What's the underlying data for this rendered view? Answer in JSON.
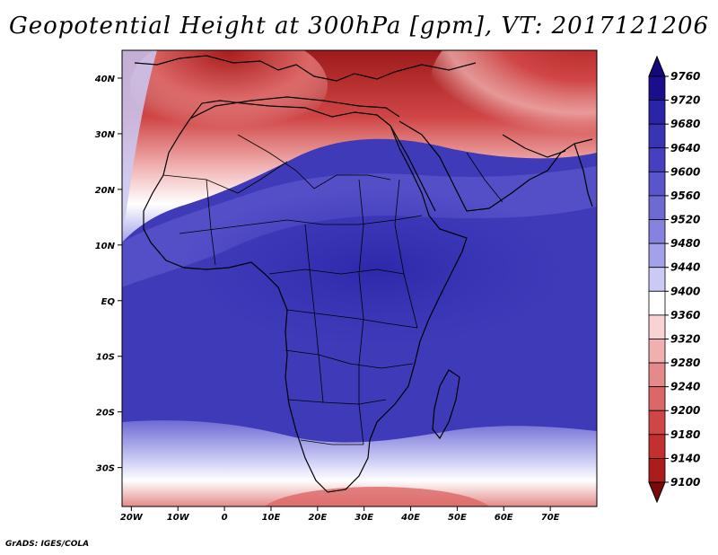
{
  "title": "Geopotential Height at 300hPa [gpm], VT: 2017121206",
  "credit": "GrADS: IGES/COLA",
  "map": {
    "variable": "Geopotential Height",
    "level": "300hPa",
    "units": "gpm",
    "valid_time": "2017121206",
    "lon_range": [
      -22,
      80
    ],
    "lat_range": [
      -37,
      45
    ],
    "x_ticks": [
      {
        "lon": -20,
        "label": "20W"
      },
      {
        "lon": -10,
        "label": "10W"
      },
      {
        "lon": 0,
        "label": "0"
      },
      {
        "lon": 10,
        "label": "10E"
      },
      {
        "lon": 20,
        "label": "20E"
      },
      {
        "lon": 30,
        "label": "30E"
      },
      {
        "lon": 40,
        "label": "40E"
      },
      {
        "lon": 50,
        "label": "50E"
      },
      {
        "lon": 60,
        "label": "60E"
      },
      {
        "lon": 70,
        "label": "70E"
      }
    ],
    "y_ticks": [
      {
        "lat": 40,
        "label": "40N"
      },
      {
        "lat": 30,
        "label": "30N"
      },
      {
        "lat": 20,
        "label": "20N"
      },
      {
        "lat": 10,
        "label": "10N"
      },
      {
        "lat": 0,
        "label": "EQ"
      },
      {
        "lat": -10,
        "label": "10S"
      },
      {
        "lat": -20,
        "label": "20S"
      },
      {
        "lat": -30,
        "label": "30S"
      }
    ]
  },
  "colorbar": {
    "levels": [
      {
        "label": "9760",
        "color": "#1a0e8c"
      },
      {
        "label": "9720",
        "color": "#2a25a8"
      },
      {
        "label": "9680",
        "color": "#3834b4"
      },
      {
        "label": "9640",
        "color": "#4640c0"
      },
      {
        "label": "9600",
        "color": "#5a55ca"
      },
      {
        "label": "9560",
        "color": "#6e6ad4"
      },
      {
        "label": "9520",
        "color": "#8683de"
      },
      {
        "label": "9480",
        "color": "#a3a2e8"
      },
      {
        "label": "9440",
        "color": "#cacaf4"
      },
      {
        "label": "9400",
        "color": "#ffffff"
      },
      {
        "label": "9360",
        "color": "#f7d3d3"
      },
      {
        "label": "9320",
        "color": "#f0b0b0"
      },
      {
        "label": "9280",
        "color": "#e58a8a"
      },
      {
        "label": "9240",
        "color": "#dc6767"
      },
      {
        "label": "9200",
        "color": "#d04646"
      },
      {
        "label": "9180",
        "color": "#c23030"
      },
      {
        "label": "9140",
        "color": "#ab1d1d"
      },
      {
        "label": "9100",
        "color": "#8c0f0f"
      }
    ],
    "over_color": "#14087a",
    "under_color": "#7a0a0a"
  }
}
